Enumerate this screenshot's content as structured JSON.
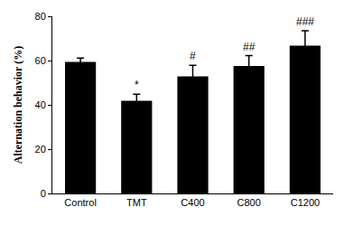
{
  "chart_data": {
    "type": "bar",
    "y_label": "Alternation behavior (%)",
    "categories": [
      "Control",
      "TMT",
      "C400",
      "C800",
      "C1200"
    ],
    "values": [
      59.4,
      41.8,
      52.9,
      57.6,
      66.7
    ],
    "errors": [
      1.7,
      3.0,
      5.0,
      4.6,
      6.8
    ],
    "color": "#000000",
    "ylim": [
      0,
      80
    ],
    "yticks": [
      0,
      20,
      40,
      60,
      80
    ],
    "grid": false,
    "annotations": [
      {
        "category": "TMT",
        "text": "*"
      },
      {
        "category": "C400",
        "text": "#"
      },
      {
        "category": "C800",
        "text": "##"
      },
      {
        "category": "C1200",
        "text": "###"
      }
    ]
  }
}
